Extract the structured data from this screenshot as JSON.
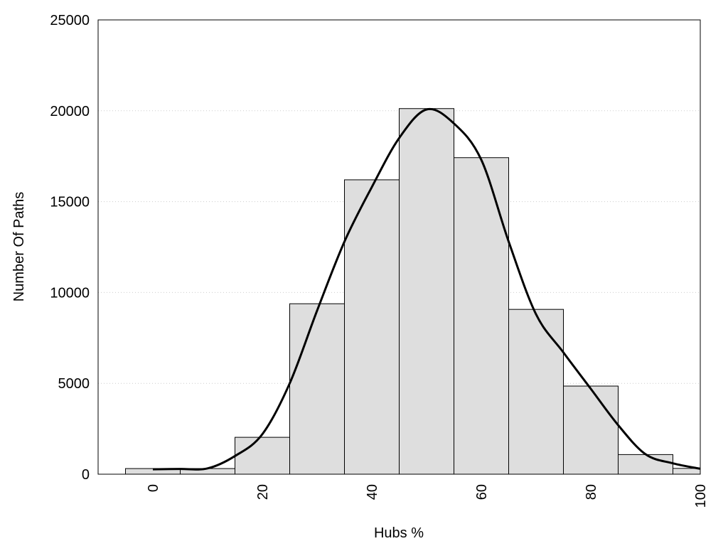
{
  "chart_data": {
    "type": "bar",
    "title": "",
    "xlabel": "Hubs %",
    "ylabel": "Number Of Paths",
    "xlim": [
      -10,
      100
    ],
    "ylim": [
      0,
      25000
    ],
    "x_ticks": [
      0,
      20,
      40,
      60,
      80,
      100
    ],
    "y_ticks": [
      0,
      5000,
      10000,
      15000,
      20000,
      25000
    ],
    "grid": "horizontal dotted",
    "bar_width": 10,
    "bars": [
      {
        "x": 0,
        "value": 310
      },
      {
        "x": 10,
        "value": 310
      },
      {
        "x": 20,
        "value": 2030
      },
      {
        "x": 30,
        "value": 9380
      },
      {
        "x": 40,
        "value": 16200
      },
      {
        "x": 50,
        "value": 20120
      },
      {
        "x": 60,
        "value": 17420
      },
      {
        "x": 70,
        "value": 9070
      },
      {
        "x": 80,
        "value": 4850
      },
      {
        "x": 90,
        "value": 1080
      },
      {
        "x": 100,
        "value": 320
      }
    ],
    "curve": [
      [
        0,
        270
      ],
      [
        5,
        290
      ],
      [
        10,
        320
      ],
      [
        15,
        1000
      ],
      [
        20,
        2200
      ],
      [
        25,
        5000
      ],
      [
        30,
        9000
      ],
      [
        35,
        12800
      ],
      [
        40,
        15800
      ],
      [
        45,
        18500
      ],
      [
        50,
        20070
      ],
      [
        55,
        19300
      ],
      [
        60,
        17300
      ],
      [
        65,
        12800
      ],
      [
        70,
        8800
      ],
      [
        75,
        6700
      ],
      [
        80,
        4700
      ],
      [
        85,
        2700
      ],
      [
        90,
        1100
      ],
      [
        95,
        600
      ],
      [
        100,
        300
      ]
    ],
    "colors": {
      "bar_fill": "#dedede",
      "bar_stroke": "#000000",
      "curve": "#000000",
      "grid": "#cccccc"
    }
  }
}
